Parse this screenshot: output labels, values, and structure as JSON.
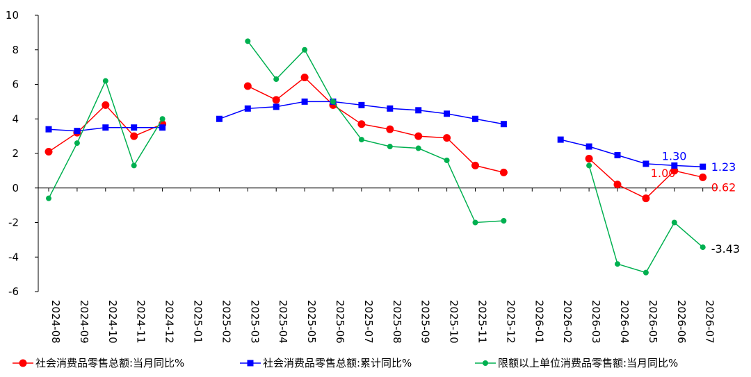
{
  "chart_data": {
    "type": "line",
    "categories": [
      "2024-08",
      "2024-09",
      "2024-10",
      "2024-11",
      "2024-12",
      "2025-01",
      "2025-02",
      "2025-03",
      "2025-04",
      "2025-05",
      "2025-06",
      "2025-07",
      "2025-08",
      "2025-09",
      "2025-10",
      "2025-11",
      "2025-12",
      "2026-01",
      "2026-02",
      "2026-03",
      "2026-04",
      "2026-05",
      "2026-06",
      "2026-07"
    ],
    "ylim": [
      -6,
      10
    ],
    "yticks": [
      -6,
      -4,
      -2,
      0,
      2,
      4,
      6,
      8,
      10
    ],
    "series": [
      {
        "name": "社会消费品零售总额:当月同比%",
        "color": "#ff0000",
        "marker": "circle",
        "values": [
          2.1,
          3.2,
          4.8,
          3.0,
          3.7,
          null,
          null,
          5.9,
          5.1,
          6.4,
          4.8,
          3.7,
          3.4,
          3.0,
          2.9,
          1.3,
          0.9,
          null,
          null,
          1.7,
          0.2,
          -0.6,
          1.0,
          0.62
        ]
      },
      {
        "name": "社会消费品零售总额:累计同比%",
        "color": "#0000ff",
        "marker": "square",
        "values": [
          3.4,
          3.3,
          3.5,
          3.5,
          3.5,
          null,
          4.0,
          4.6,
          4.7,
          5.0,
          5.0,
          4.8,
          4.6,
          4.5,
          4.3,
          4.0,
          3.7,
          null,
          2.8,
          2.4,
          1.9,
          1.4,
          1.3,
          1.23
        ]
      },
      {
        "name": "限额以上单位消费品零售额:当月同比%",
        "color": "#00b050",
        "marker": "circle-small",
        "values": [
          -0.6,
          2.6,
          6.2,
          1.3,
          4.0,
          null,
          null,
          8.5,
          6.3,
          8.0,
          5.0,
          2.8,
          2.4,
          2.3,
          1.6,
          -2.0,
          -1.9,
          null,
          null,
          1.3,
          -4.4,
          -4.9,
          -2.0,
          -3.43
        ]
      }
    ],
    "annotations": [
      {
        "text": "1.30",
        "series": 1,
        "index": 22,
        "color": "#0000ff"
      },
      {
        "text": "1.23",
        "series": 1,
        "index": 23,
        "color": "#0000ff"
      },
      {
        "text": "1.00",
        "series": 0,
        "index": 22,
        "color": "#ff0000"
      },
      {
        "text": "0.62",
        "series": 0,
        "index": 23,
        "color": "#ff0000"
      },
      {
        "text": "-3.43",
        "series": 2,
        "index": 23,
        "color": "#000000"
      }
    ],
    "legend_position": "bottom",
    "grid": false
  }
}
